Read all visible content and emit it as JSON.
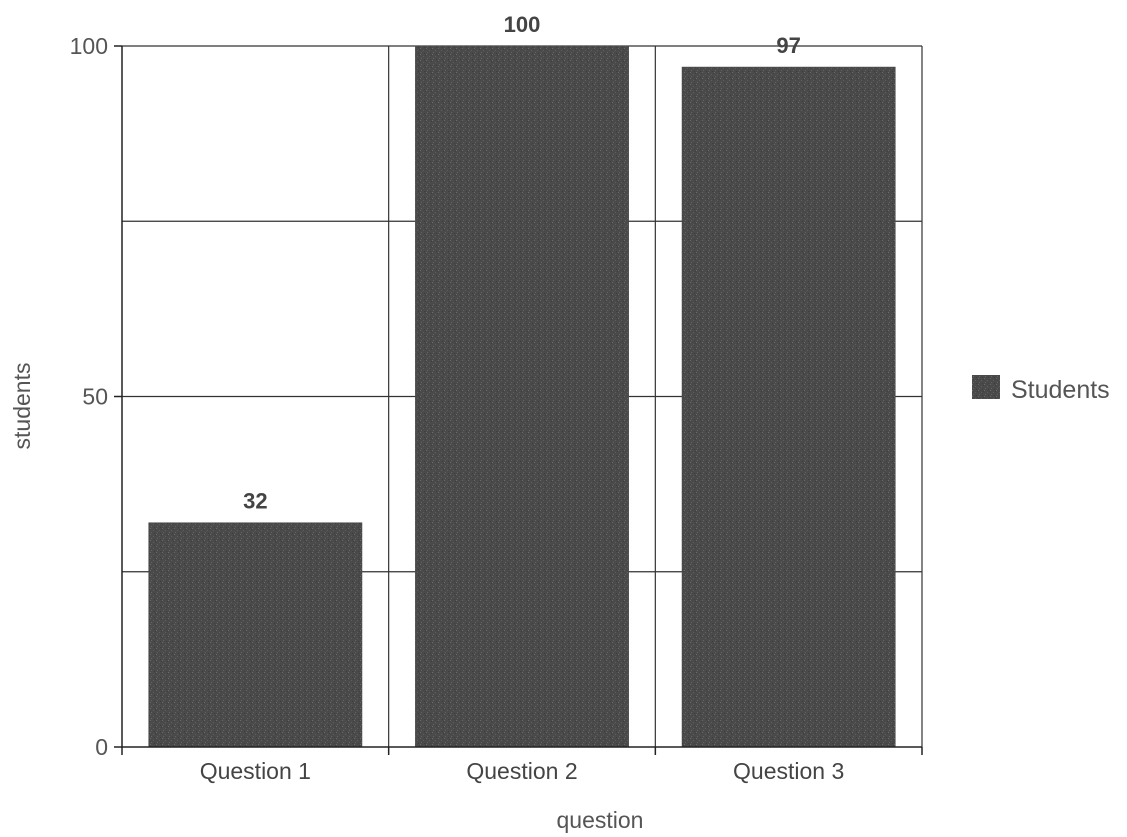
{
  "chart_data": {
    "type": "bar",
    "title": "",
    "xlabel": "question",
    "ylabel": "students",
    "categories": [
      "Question 1",
      "Question 2",
      "Question 3"
    ],
    "series": [
      {
        "name": "Students",
        "values": [
          32,
          100,
          97
        ],
        "color": "#4a4a4a"
      }
    ],
    "data_labels": [
      "32",
      "100",
      "97"
    ],
    "ylim": [
      0,
      100
    ],
    "y_ticks": [
      0,
      50,
      100
    ],
    "y_tick_labels": [
      "0",
      "50",
      "100"
    ],
    "y_gridlines": [
      25,
      50,
      75,
      100
    ],
    "grid": true,
    "legend": {
      "placement": "right",
      "entries": [
        "Students"
      ]
    }
  }
}
